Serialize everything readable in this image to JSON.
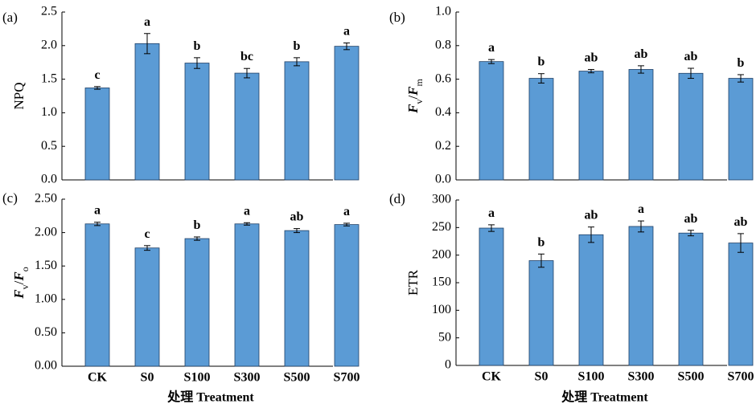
{
  "x_title": "处理 Treatment",
  "colors": {
    "bar": "#5b9bd5",
    "bar_edge": "#1f3f66",
    "axis": "#000000"
  },
  "chart_data": [
    {
      "type": "bar",
      "panel": "(a)",
      "ylabel": "NPQ",
      "ylabel_parts": [
        {
          "text": "NPQ",
          "style": "normal"
        }
      ],
      "ylim": [
        0,
        2.5
      ],
      "yticks": [
        "0.0",
        "0.5",
        "1.0",
        "1.5",
        "2.0",
        "2.5"
      ],
      "categories": [
        "CK",
        "S0",
        "S100",
        "S300",
        "S500",
        "S700"
      ],
      "show_categories": false,
      "values": [
        1.37,
        2.03,
        1.74,
        1.59,
        1.76,
        1.99
      ],
      "errors": [
        0.02,
        0.15,
        0.08,
        0.07,
        0.06,
        0.05
      ],
      "letters": [
        "c",
        "a",
        "b",
        "bc",
        "b",
        "a"
      ]
    },
    {
      "type": "bar",
      "panel": "(b)",
      "ylabel": "Fv/Fm",
      "ylabel_parts": [
        {
          "text": "F",
          "style": "italic"
        },
        {
          "text": "v",
          "style": "sub"
        },
        {
          "text": "/",
          "style": "normal"
        },
        {
          "text": "F",
          "style": "italic"
        },
        {
          "text": "m",
          "style": "sub"
        }
      ],
      "ylim": [
        0,
        1.0
      ],
      "yticks": [
        "0.0",
        "0.2",
        "0.4",
        "0.6",
        "0.8",
        "1.0"
      ],
      "categories": [
        "CK",
        "S0",
        "S100",
        "S300",
        "S500",
        "S700"
      ],
      "show_categories": false,
      "values": [
        0.705,
        0.605,
        0.648,
        0.658,
        0.635,
        0.605
      ],
      "errors": [
        0.012,
        0.028,
        0.01,
        0.022,
        0.03,
        0.022
      ],
      "letters": [
        "a",
        "b",
        "ab",
        "ab",
        "ab",
        "b"
      ]
    },
    {
      "type": "bar",
      "panel": "(c)",
      "ylabel": "Fv/Fo",
      "ylabel_parts": [
        {
          "text": "F",
          "style": "italic"
        },
        {
          "text": "v",
          "style": "sub"
        },
        {
          "text": "/",
          "style": "normal"
        },
        {
          "text": "F",
          "style": "italic"
        },
        {
          "text": "o",
          "style": "sub"
        }
      ],
      "ylim": [
        0,
        2.5
      ],
      "yticks": [
        "0.00",
        "0.50",
        "1.00",
        "1.50",
        "2.00",
        "2.50"
      ],
      "categories": [
        "CK",
        "S0",
        "S100",
        "S300",
        "S500",
        "S700"
      ],
      "show_categories": true,
      "values": [
        2.13,
        1.77,
        1.91,
        2.13,
        2.03,
        2.12
      ],
      "errors": [
        0.025,
        0.035,
        0.025,
        0.018,
        0.03,
        0.02
      ],
      "letters": [
        "a",
        "c",
        "b",
        "a",
        "ab",
        "a"
      ]
    },
    {
      "type": "bar",
      "panel": "(d)",
      "ylabel": "ETR",
      "ylabel_parts": [
        {
          "text": "ETR",
          "style": "normal"
        }
      ],
      "ylim": [
        0,
        300
      ],
      "yticks": [
        "0",
        "50",
        "100",
        "150",
        "200",
        "250",
        "300"
      ],
      "categories": [
        "CK",
        "S0",
        "S100",
        "S300",
        "S500",
        "S700"
      ],
      "show_categories": true,
      "values": [
        249,
        190,
        237,
        252,
        240,
        222
      ],
      "errors": [
        6,
        12,
        14,
        10,
        5,
        17
      ],
      "letters": [
        "a",
        "b",
        "ab",
        "a",
        "ab",
        "ab"
      ]
    }
  ]
}
